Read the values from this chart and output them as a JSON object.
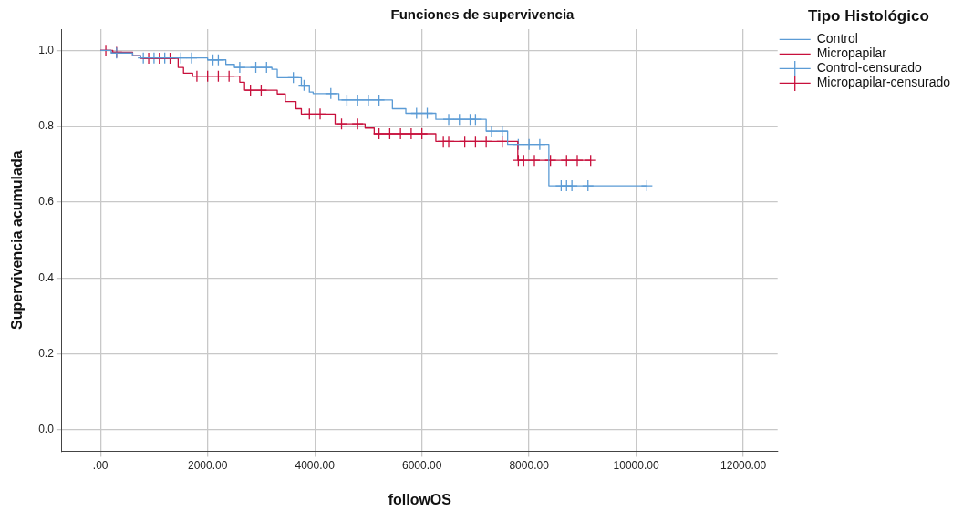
{
  "chart_data": {
    "type": "step",
    "title": "Funciones de supervivencia",
    "xlabel": "followOS",
    "ylabel": "Supervivencia acumulada",
    "legend_title": "Tipo Histológico",
    "legend": "top right",
    "grid": true,
    "xlim": [
      -720,
      12640
    ],
    "xticks": [
      {
        "value": 0,
        "label": ".00"
      },
      {
        "value": 2000,
        "label": "2000.00"
      },
      {
        "value": 4000,
        "label": "4000.00"
      },
      {
        "value": 6000,
        "label": "6000.00"
      },
      {
        "value": 8000,
        "label": "8000.00"
      },
      {
        "value": 10000,
        "label": "10000.00"
      },
      {
        "value": 12000,
        "label": "12000.00"
      }
    ],
    "ylim": [
      -0.056,
      1.056
    ],
    "yticks": [
      {
        "value": 0,
        "label": "0.0"
      },
      0.2,
      0.4,
      0.6,
      0.8,
      {
        "value": 1,
        "label": "1.0"
      }
    ],
    "series": [
      {
        "name": "Control",
        "type": "step",
        "color": "#5b9bd5",
        "line_style": "solid",
        "marker": "none",
        "x": [
          0,
          200,
          600,
          750,
          2000,
          2340,
          2500,
          3200,
          3300,
          3750,
          3900,
          3970,
          4450,
          5450,
          5700,
          6260,
          7200,
          7600,
          8370,
          10190
        ],
        "values": [
          1.0,
          0.993,
          0.986,
          0.98,
          0.975,
          0.963,
          0.955,
          0.95,
          0.928,
          0.908,
          0.89,
          0.886,
          0.869,
          0.846,
          0.834,
          0.818,
          0.787,
          0.752,
          0.643,
          0.643
        ]
      },
      {
        "name": "Micropapilar",
        "type": "step",
        "color": "#c8103c",
        "line_style": "solid",
        "marker": "none",
        "x": [
          0,
          230,
          600,
          750,
          1450,
          1550,
          1720,
          2600,
          2690,
          3300,
          3450,
          3650,
          3750,
          4380,
          4940,
          5110,
          6260,
          7790,
          9150
        ],
        "values": [
          1.0,
          0.995,
          0.986,
          0.979,
          0.955,
          0.94,
          0.932,
          0.916,
          0.895,
          0.885,
          0.865,
          0.846,
          0.832,
          0.806,
          0.795,
          0.78,
          0.76,
          0.71,
          0.71
        ]
      },
      {
        "name": "Control-censurado",
        "type": "scatter",
        "color": "#5b9bd5",
        "marker": "cross",
        "x": [
          300,
          800,
          1000,
          1200,
          1500,
          1700,
          2100,
          2200,
          2600,
          2900,
          3100,
          3600,
          3800,
          4300,
          4600,
          4800,
          5000,
          5200,
          5900,
          6100,
          6500,
          6700,
          6900,
          7000,
          7300,
          7500,
          7800,
          8000,
          8200,
          8600,
          8700,
          8800,
          9100,
          10200
        ],
        "values": [
          0.993,
          0.98,
          0.98,
          0.98,
          0.98,
          0.98,
          0.975,
          0.975,
          0.955,
          0.955,
          0.955,
          0.928,
          0.908,
          0.886,
          0.869,
          0.869,
          0.869,
          0.869,
          0.834,
          0.834,
          0.818,
          0.818,
          0.818,
          0.818,
          0.787,
          0.787,
          0.752,
          0.752,
          0.752,
          0.643,
          0.643,
          0.643,
          0.643,
          0.643
        ]
      },
      {
        "name": "Micropapilar-censurado",
        "type": "scatter",
        "color": "#c8103c",
        "marker": "cross",
        "x": [
          100,
          300,
          900,
          1100,
          1300,
          1800,
          2000,
          2200,
          2400,
          2800,
          3000,
          3900,
          4100,
          4500,
          4800,
          5200,
          5400,
          5600,
          5800,
          6000,
          6400,
          6500,
          6800,
          7000,
          7200,
          7500,
          7800,
          7900,
          8100,
          8400,
          8700,
          8900,
          9150
        ],
        "values": [
          1.0,
          0.995,
          0.979,
          0.979,
          0.979,
          0.932,
          0.932,
          0.932,
          0.932,
          0.895,
          0.895,
          0.832,
          0.832,
          0.806,
          0.806,
          0.78,
          0.78,
          0.78,
          0.78,
          0.78,
          0.76,
          0.76,
          0.76,
          0.76,
          0.76,
          0.76,
          0.71,
          0.71,
          0.71,
          0.71,
          0.71,
          0.71,
          0.71
        ]
      }
    ]
  }
}
